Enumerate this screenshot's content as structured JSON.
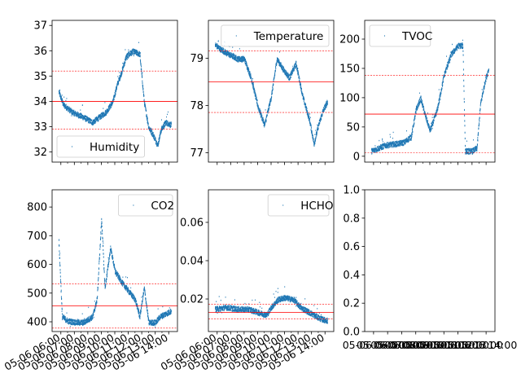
{
  "figure": {
    "background": "#ffffff"
  },
  "colors": {
    "series": "#1f77b4",
    "mean": "#ff0000",
    "band": "#ff0000"
  },
  "chart_data": [
    {
      "type": "scatter",
      "legend_label": "Humidity",
      "legend_position": "lower-left",
      "ylim": [
        31.6,
        37.2
      ],
      "yticks": [
        32,
        33,
        34,
        35,
        36,
        37
      ],
      "mean": 34.0,
      "band": [
        32.9,
        35.2
      ],
      "xticklabels": [],
      "series_trace": [
        [
          0.0,
          34.4
        ],
        [
          0.04,
          33.9
        ],
        [
          0.12,
          33.6
        ],
        [
          0.22,
          33.4
        ],
        [
          0.3,
          33.2
        ],
        [
          0.36,
          33.4
        ],
        [
          0.42,
          33.6
        ],
        [
          0.48,
          34.0
        ],
        [
          0.52,
          34.7
        ],
        [
          0.56,
          35.2
        ],
        [
          0.6,
          35.8
        ],
        [
          0.66,
          36.0
        ],
        [
          0.72,
          35.9
        ],
        [
          0.76,
          34.0
        ],
        [
          0.8,
          33.0
        ],
        [
          0.84,
          32.7
        ],
        [
          0.88,
          32.3
        ],
        [
          0.91,
          32.9
        ],
        [
          0.95,
          33.2
        ],
        [
          1.0,
          33.1
        ]
      ]
    },
    {
      "type": "scatter",
      "legend_label": "Temperature",
      "legend_position": "upper-right",
      "ylim": [
        76.8,
        79.8
      ],
      "yticks": [
        77,
        78,
        79
      ],
      "mean": 78.5,
      "band": [
        77.85,
        79.15
      ],
      "xticklabels": [],
      "series_trace": [
        [
          0.0,
          79.3
        ],
        [
          0.05,
          79.2
        ],
        [
          0.12,
          79.1
        ],
        [
          0.2,
          79.0
        ],
        [
          0.26,
          79.0
        ],
        [
          0.32,
          78.6
        ],
        [
          0.38,
          78.0
        ],
        [
          0.44,
          77.6
        ],
        [
          0.5,
          78.2
        ],
        [
          0.55,
          79.0
        ],
        [
          0.6,
          78.8
        ],
        [
          0.66,
          78.6
        ],
        [
          0.72,
          78.9
        ],
        [
          0.78,
          78.2
        ],
        [
          0.84,
          77.7
        ],
        [
          0.88,
          77.2
        ],
        [
          0.92,
          77.6
        ],
        [
          0.96,
          77.9
        ],
        [
          1.0,
          78.1
        ]
      ]
    },
    {
      "type": "scatter",
      "legend_label": "TVOC",
      "legend_position": "upper-left",
      "ylim": [
        -10,
        232
      ],
      "yticks": [
        0,
        50,
        100,
        150,
        200
      ],
      "mean": 72,
      "band": [
        6,
        138
      ],
      "xticklabels": [],
      "series_trace": [
        [
          0.0,
          10
        ],
        [
          0.06,
          15
        ],
        [
          0.12,
          20
        ],
        [
          0.2,
          22
        ],
        [
          0.28,
          25
        ],
        [
          0.34,
          35
        ],
        [
          0.38,
          80
        ],
        [
          0.42,
          100
        ],
        [
          0.46,
          70
        ],
        [
          0.5,
          45
        ],
        [
          0.56,
          80
        ],
        [
          0.62,
          140
        ],
        [
          0.68,
          175
        ],
        [
          0.74,
          190
        ],
        [
          0.78,
          190
        ],
        [
          0.8,
          10
        ],
        [
          0.86,
          10
        ],
        [
          0.9,
          15
        ],
        [
          0.93,
          90
        ],
        [
          0.97,
          130
        ],
        [
          1.0,
          150
        ]
      ]
    },
    {
      "type": "scatter",
      "legend_label": "CO2",
      "legend_position": "upper-right",
      "ylim": [
        366,
        860
      ],
      "yticks": [
        400,
        500,
        600,
        700,
        800
      ],
      "mean": 455,
      "band": [
        378,
        532
      ],
      "xticklabels": [
        "05-06 06:00",
        "05-06 07:00",
        "05-06 08:00",
        "05-06 09:00",
        "05-06 10:00",
        "05-06 11:00",
        "05-06 12:00",
        "05-06 13:00",
        "05-06 14:00"
      ],
      "series_trace": [
        [
          0.0,
          680
        ],
        [
          0.03,
          420
        ],
        [
          0.08,
          405
        ],
        [
          0.16,
          400
        ],
        [
          0.22,
          400
        ],
        [
          0.3,
          420
        ],
        [
          0.34,
          480
        ],
        [
          0.38,
          760
        ],
        [
          0.41,
          520
        ],
        [
          0.46,
          660
        ],
        [
          0.5,
          580
        ],
        [
          0.56,
          540
        ],
        [
          0.62,
          510
        ],
        [
          0.68,
          480
        ],
        [
          0.72,
          420
        ],
        [
          0.76,
          520
        ],
        [
          0.8,
          400
        ],
        [
          0.86,
          400
        ],
        [
          0.9,
          420
        ],
        [
          0.95,
          430
        ],
        [
          1.0,
          440
        ]
      ]
    },
    {
      "type": "scatter",
      "legend_label": "HCHO",
      "legend_position": "upper-right",
      "ylim": [
        0.003,
        0.077
      ],
      "yticks": [
        0.02,
        0.04,
        0.06
      ],
      "mean": 0.013,
      "band": [
        0.0095,
        0.0172
      ],
      "xticklabels": [
        "05-06 06:00",
        "05-06 07:00",
        "05-06 08:00",
        "05-06 09:00",
        "05-06 10:00",
        "05-06 11:00",
        "05-06 12:00",
        "05-06 13:00",
        "05-06 14:00"
      ],
      "series_trace": [
        [
          0.0,
          0.015
        ],
        [
          0.1,
          0.016
        ],
        [
          0.2,
          0.015
        ],
        [
          0.3,
          0.015
        ],
        [
          0.4,
          0.013
        ],
        [
          0.46,
          0.012
        ],
        [
          0.5,
          0.016
        ],
        [
          0.56,
          0.02
        ],
        [
          0.62,
          0.021
        ],
        [
          0.7,
          0.02
        ],
        [
          0.76,
          0.016
        ],
        [
          0.82,
          0.014
        ],
        [
          0.88,
          0.012
        ],
        [
          0.94,
          0.01
        ],
        [
          1.0,
          0.009
        ]
      ]
    },
    {
      "type": "scatter",
      "empty": true,
      "xlim": [
        0,
        1
      ],
      "ylim": [
        0,
        1
      ],
      "yticks": [
        0.0,
        0.2,
        0.4,
        0.6,
        0.8,
        1.0
      ],
      "ytick_labels": [
        "0.0",
        "0.2",
        "0.4",
        "0.6",
        "0.8",
        "1.0"
      ],
      "xticklabels": [
        "05-06 06:00",
        "05-06 07:00",
        "05-06 08:00",
        "05-06 09:00",
        "05-06 10:00",
        "05-06 11:00",
        "05-06 12:00",
        "05-06 13:00",
        "05-06 14:00"
      ]
    }
  ]
}
